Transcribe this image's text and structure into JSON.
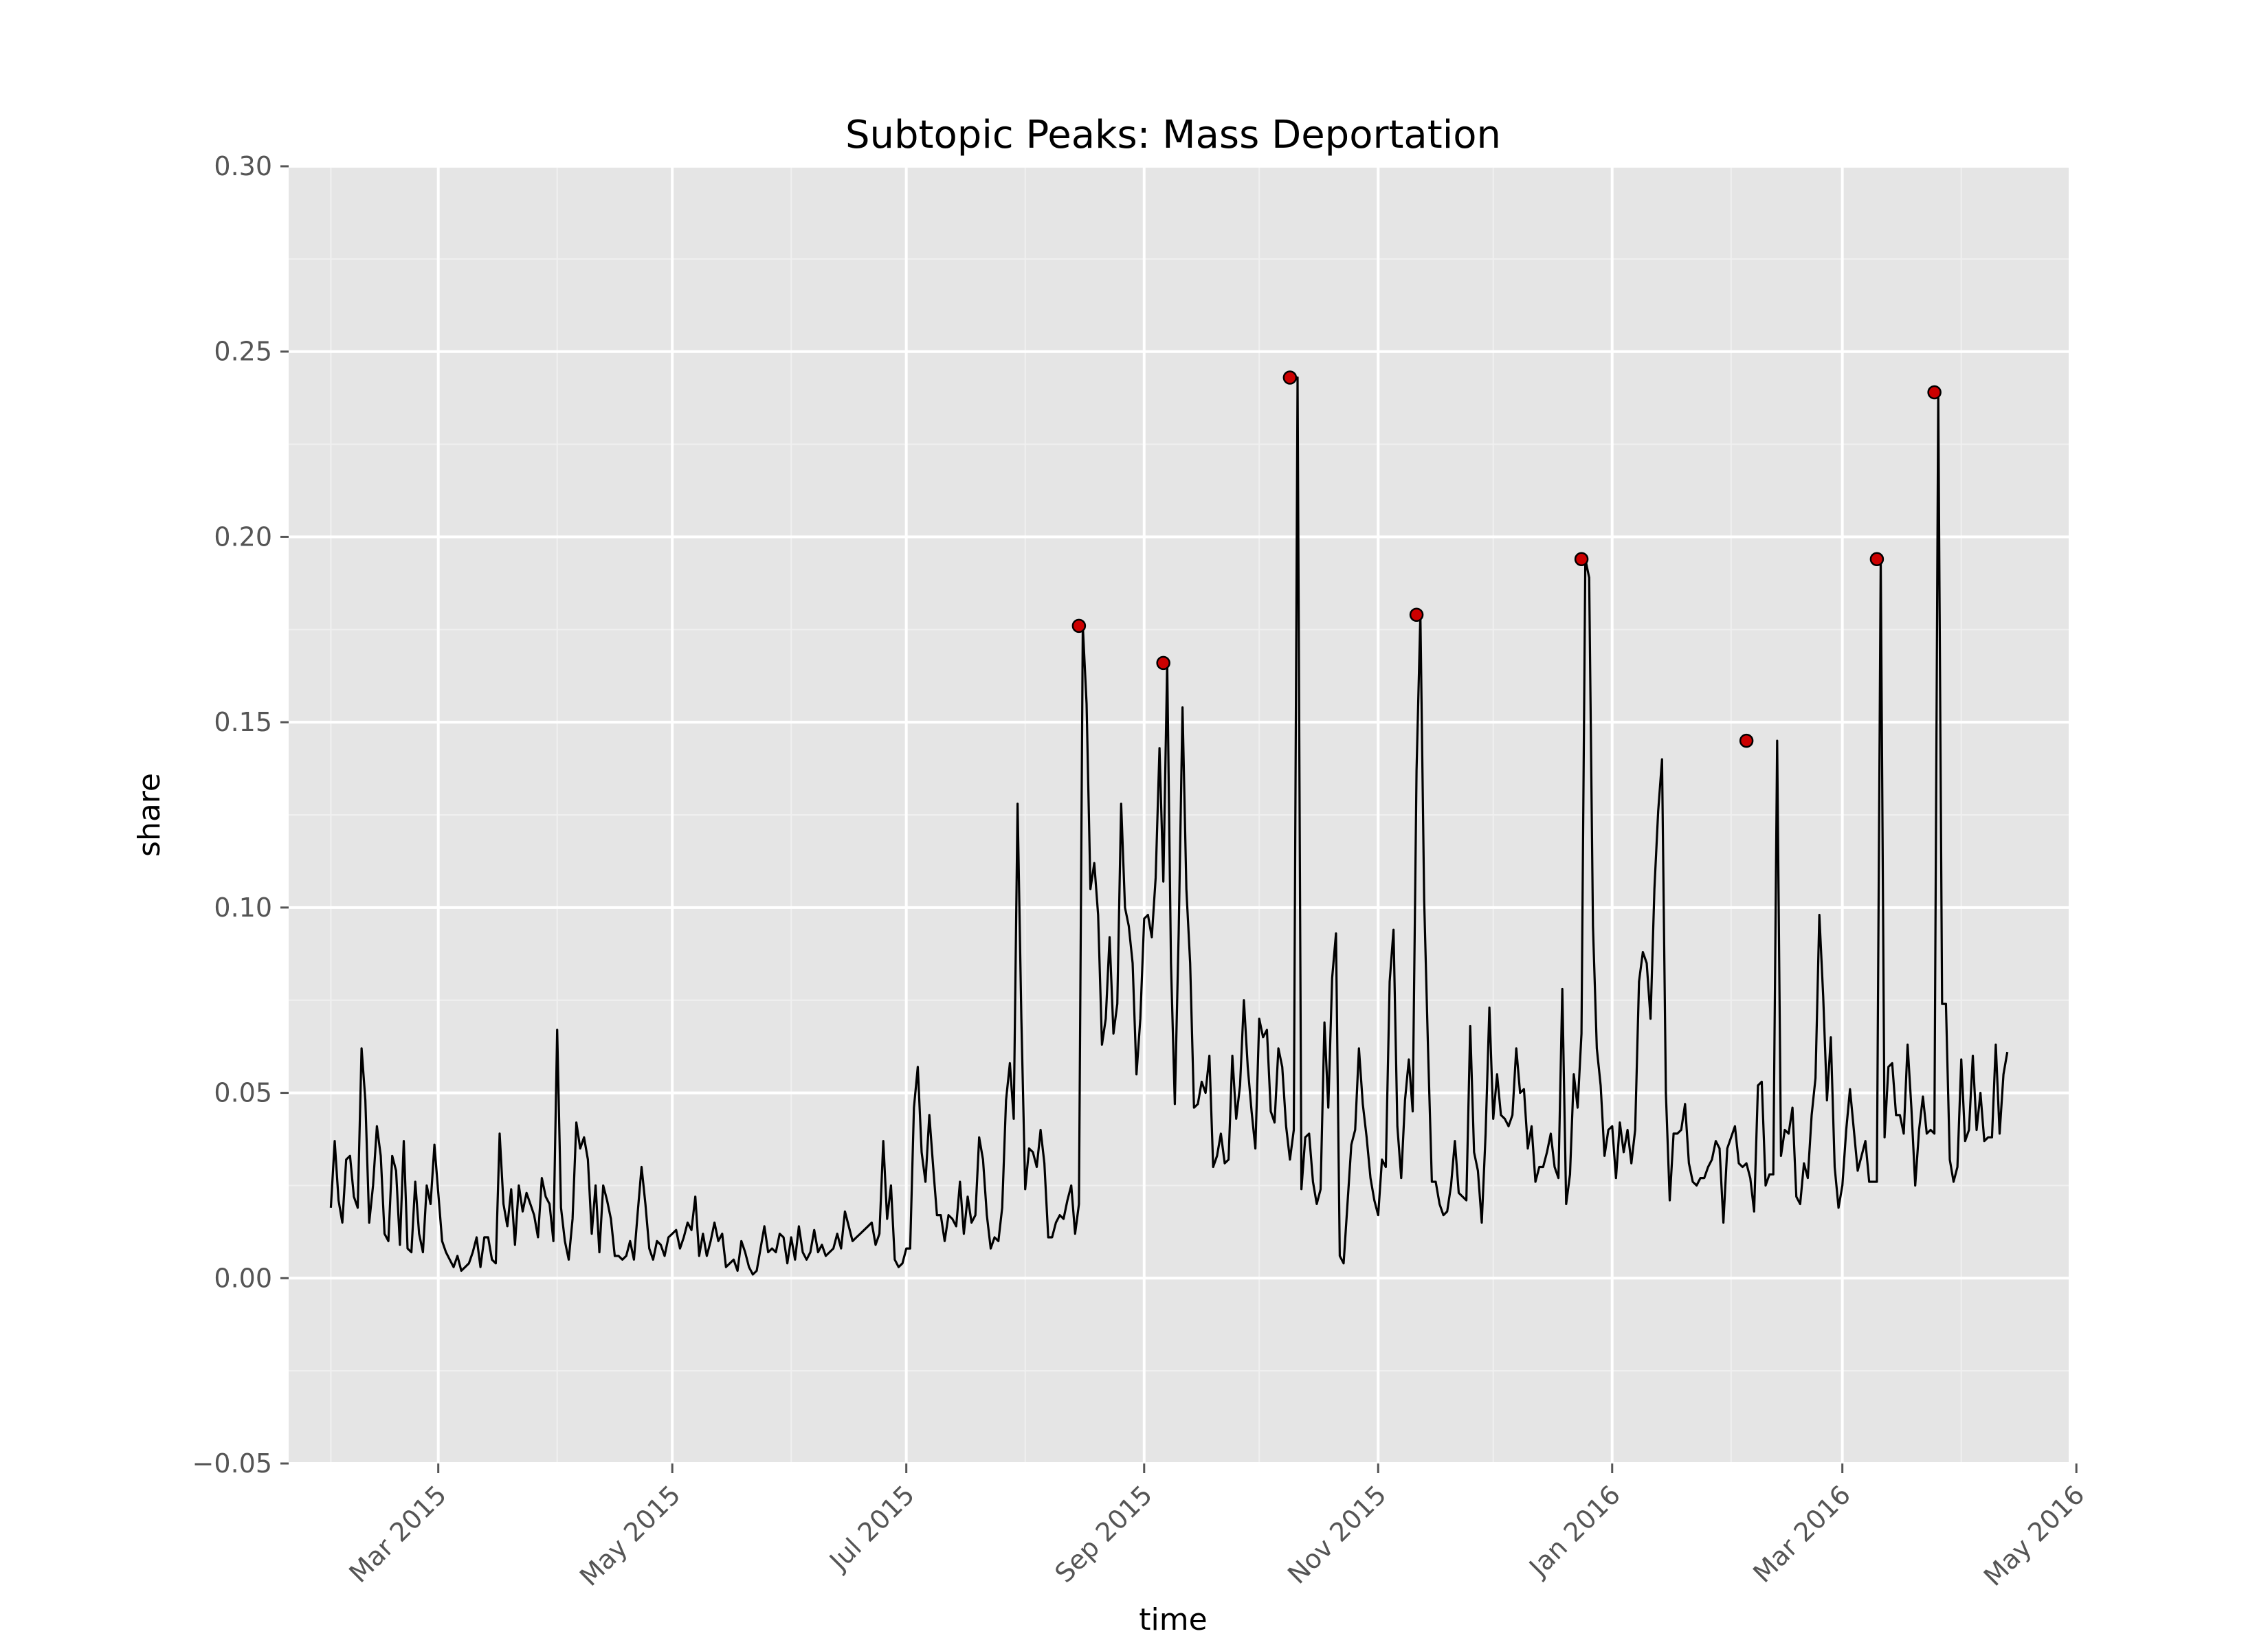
{
  "chart_data": {
    "type": "line",
    "title": "Subtopic Peaks: Mass Deportation",
    "xlabel": "time",
    "ylabel": "share",
    "ylim": [
      -0.05,
      0.3
    ],
    "xlim": [
      "2015-01-21",
      "2016-04-29"
    ],
    "grid": true,
    "colors": {
      "background": "#e5e5e5",
      "grid": "#ffffff",
      "line": "#000000",
      "peak": "#cc0000"
    },
    "y_ticks": [
      "−0.05",
      "0.00",
      "0.05",
      "0.10",
      "0.15",
      "0.20",
      "0.25",
      "0.30"
    ],
    "y_tick_values": [
      -0.05,
      0.0,
      0.05,
      0.1,
      0.15,
      0.2,
      0.25,
      0.3
    ],
    "x_ticks": [
      "Mar 2015",
      "May 2015",
      "Jul 2015",
      "Sep 2015",
      "Nov 2015",
      "Jan 2016",
      "Mar 2016",
      "May 2016"
    ],
    "x_tick_dates": [
      "2015-03-01",
      "2015-05-01",
      "2015-07-01",
      "2015-09-01",
      "2015-11-01",
      "2016-01-01",
      "2016-03-01",
      "2016-05-01"
    ],
    "series": [
      {
        "start_date": "2015-02-01",
        "step": "1 day",
        "values": [
          0.019,
          0.037,
          0.021,
          0.015,
          0.032,
          0.033,
          0.022,
          0.019,
          0.062,
          0.048,
          0.015,
          0.025,
          0.041,
          0.033,
          0.012,
          0.01,
          0.033,
          0.029,
          0.009,
          0.037,
          0.008,
          0.007,
          0.026,
          0.012,
          0.007,
          0.025,
          0.02,
          0.036,
          0.023,
          0.01,
          0.007,
          0.005,
          0.003,
          0.006,
          0.002,
          0.003,
          0.004,
          0.007,
          0.011,
          0.003,
          0.011,
          0.011,
          0.005,
          0.004,
          0.039,
          0.02,
          0.014,
          0.024,
          0.009,
          0.025,
          0.018,
          0.023,
          0.02,
          0.017,
          0.011,
          0.027,
          0.022,
          0.02,
          0.01,
          0.067,
          0.019,
          0.01,
          0.005,
          0.016,
          0.042,
          0.035,
          0.038,
          0.032,
          0.012,
          0.025,
          0.007,
          0.025,
          0.021,
          0.016,
          0.006,
          0.006,
          0.005,
          0.006,
          0.01,
          0.005,
          0.018,
          0.03,
          0.02,
          0.008,
          0.005,
          0.01,
          0.009,
          0.006,
          0.011,
          0.012,
          0.013,
          0.008,
          0.011,
          0.015,
          0.013,
          0.022,
          0.006,
          0.012,
          0.006,
          0.01,
          0.015,
          0.01,
          0.012,
          0.003,
          0.004,
          0.005,
          0.002,
          0.01,
          0.007,
          0.003,
          0.001,
          0.002,
          0.008,
          0.014,
          0.007,
          0.008,
          0.007,
          0.012,
          0.011,
          0.004,
          0.011,
          0.005,
          0.014,
          0.007,
          0.005,
          0.007,
          0.013,
          0.007,
          0.009,
          0.006,
          0.007,
          0.008,
          0.012,
          0.008,
          0.018,
          0.014,
          0.01,
          0.011,
          0.012,
          0.013,
          0.014,
          0.015,
          0.009,
          0.012,
          0.037,
          0.016,
          0.025,
          0.005,
          0.003,
          0.004,
          0.008,
          0.008,
          0.046,
          0.057,
          0.034,
          0.026,
          0.044,
          0.03,
          0.017,
          0.017,
          0.01,
          0.017,
          0.016,
          0.014,
          0.026,
          0.012,
          0.022,
          0.015,
          0.017,
          0.038,
          0.032,
          0.017,
          0.008,
          0.011,
          0.01,
          0.019,
          0.048,
          0.058,
          0.043,
          0.128,
          0.07,
          0.024,
          0.035,
          0.034,
          0.03,
          0.04,
          0.031,
          0.011,
          0.011,
          0.015,
          0.017,
          0.016,
          0.021,
          0.025,
          0.012,
          0.02,
          0.176,
          0.155,
          0.105,
          0.112,
          0.098,
          0.063,
          0.07,
          0.092,
          0.066,
          0.074,
          0.128,
          0.1,
          0.095,
          0.085,
          0.055,
          0.07,
          0.097,
          0.098,
          0.092,
          0.108,
          0.143,
          0.107,
          0.166,
          0.085,
          0.047,
          0.093,
          0.154,
          0.105,
          0.085,
          0.046,
          0.047,
          0.053,
          0.05,
          0.06,
          0.03,
          0.033,
          0.039,
          0.031,
          0.032,
          0.06,
          0.043,
          0.052,
          0.075,
          0.057,
          0.045,
          0.035,
          0.07,
          0.065,
          0.067,
          0.045,
          0.042,
          0.062,
          0.057,
          0.041,
          0.032,
          0.04,
          0.243,
          0.024,
          0.038,
          0.039,
          0.026,
          0.02,
          0.024,
          0.069,
          0.046,
          0.081,
          0.093,
          0.006,
          0.004,
          0.02,
          0.036,
          0.04,
          0.062,
          0.047,
          0.038,
          0.027,
          0.021,
          0.017,
          0.032,
          0.03,
          0.08,
          0.094,
          0.041,
          0.027,
          0.048,
          0.059,
          0.045,
          0.137,
          0.179,
          0.102,
          0.062,
          0.026,
          0.026,
          0.02,
          0.017,
          0.018,
          0.025,
          0.037,
          0.023,
          0.022,
          0.021,
          0.068,
          0.034,
          0.029,
          0.015,
          0.039,
          0.073,
          0.043,
          0.055,
          0.044,
          0.043,
          0.041,
          0.044,
          0.062,
          0.05,
          0.051,
          0.035,
          0.041,
          0.026,
          0.03,
          0.03,
          0.034,
          0.039,
          0.03,
          0.027,
          0.078,
          0.02,
          0.028,
          0.055,
          0.046,
          0.066,
          0.194,
          0.189,
          0.095,
          0.062,
          0.052,
          0.033,
          0.04,
          0.041,
          0.027,
          0.042,
          0.034,
          0.04,
          0.031,
          0.04,
          0.08,
          0.088,
          0.085,
          0.07,
          0.105,
          0.126,
          0.14,
          0.05,
          0.021,
          0.039,
          0.039,
          0.04,
          0.047,
          0.031,
          0.026,
          0.025,
          0.027,
          0.027,
          0.03,
          0.032,
          0.037,
          0.035,
          0.015,
          0.035,
          0.038,
          0.041,
          0.031,
          0.03,
          0.031,
          0.027,
          0.018,
          0.052,
          0.053,
          0.025,
          0.028,
          0.028,
          0.145,
          0.033,
          0.04,
          0.039,
          0.046,
          0.022,
          0.02,
          0.031,
          0.027,
          0.044,
          0.054,
          0.098,
          0.076,
          0.048,
          0.065,
          0.03,
          0.019,
          0.025,
          0.04,
          0.051,
          0.04,
          0.029,
          0.033,
          0.037,
          0.026,
          0.026,
          0.026,
          0.194,
          0.038,
          0.057,
          0.058,
          0.044,
          0.044,
          0.039,
          0.063,
          0.046,
          0.025,
          0.04,
          0.049,
          0.039,
          0.04,
          0.039,
          0.239,
          0.074,
          0.074,
          0.032,
          0.026,
          0.03,
          0.059,
          0.037,
          0.04,
          0.06,
          0.04,
          0.05,
          0.037,
          0.038,
          0.038,
          0.063,
          0.039,
          0.055,
          0.061
        ]
      }
    ],
    "peaks": [
      {
        "date": "2015-08-15",
        "value": 0.176
      },
      {
        "date": "2015-09-06",
        "value": 0.166
      },
      {
        "date": "2015-10-09",
        "value": 0.243
      },
      {
        "date": "2015-11-11",
        "value": 0.179
      },
      {
        "date": "2015-12-24",
        "value": 0.194
      },
      {
        "date": "2016-02-05",
        "value": 0.145
      },
      {
        "date": "2016-03-10",
        "value": 0.194
      },
      {
        "date": "2016-03-25",
        "value": 0.239
      }
    ]
  }
}
